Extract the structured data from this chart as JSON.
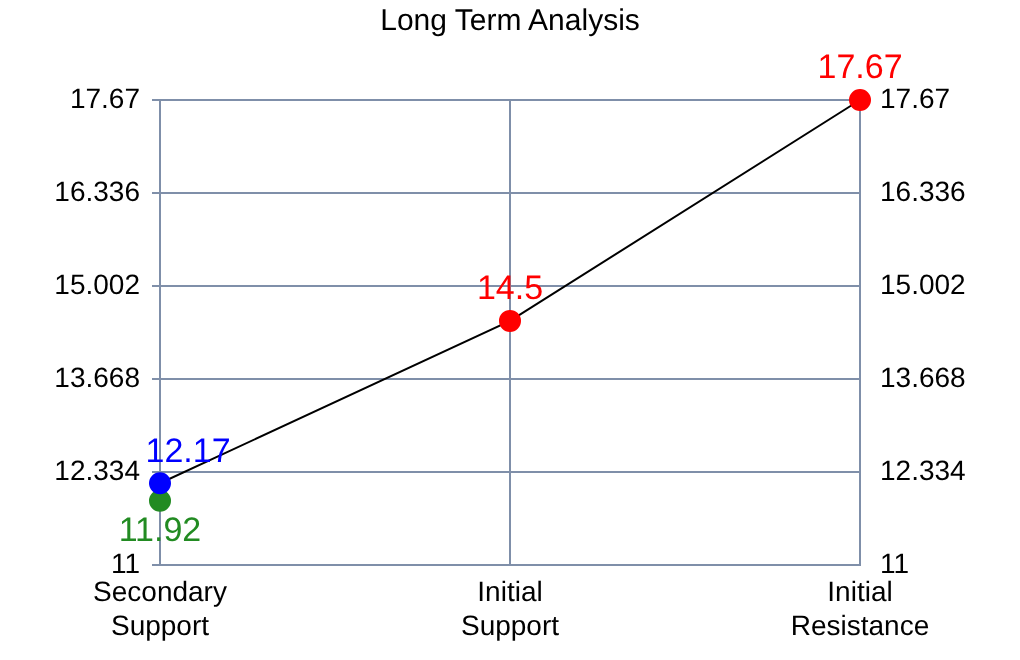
{
  "chart_data": {
    "type": "line",
    "title": "Long Term Analysis",
    "categories": [
      "Secondary Support",
      "Initial Support",
      "Initial Resistance"
    ],
    "series": [
      {
        "x": [
          "Secondary Support",
          "Secondary Support",
          "Initial Support",
          "Initial Resistance"
        ],
        "color": "#000000",
        "colors": [
          "#228b22",
          "#0000ff",
          "#ff0000",
          "#ff0000"
        ],
        "values": [
          11.92,
          12.17,
          14.5,
          17.67
        ]
      }
    ],
    "ylim": [
      11,
      17.67
    ],
    "yticks": [
      11,
      12.334,
      13.668,
      15.002,
      16.336,
      17.67
    ],
    "y2lim": [
      11,
      17.67
    ],
    "y2ticks": [
      11,
      12.334,
      13.668,
      15.002,
      16.336,
      17.67
    ],
    "grid": true,
    "marker": "circle",
    "line_style": "solid",
    "data_labels": true,
    "legend": false
  }
}
